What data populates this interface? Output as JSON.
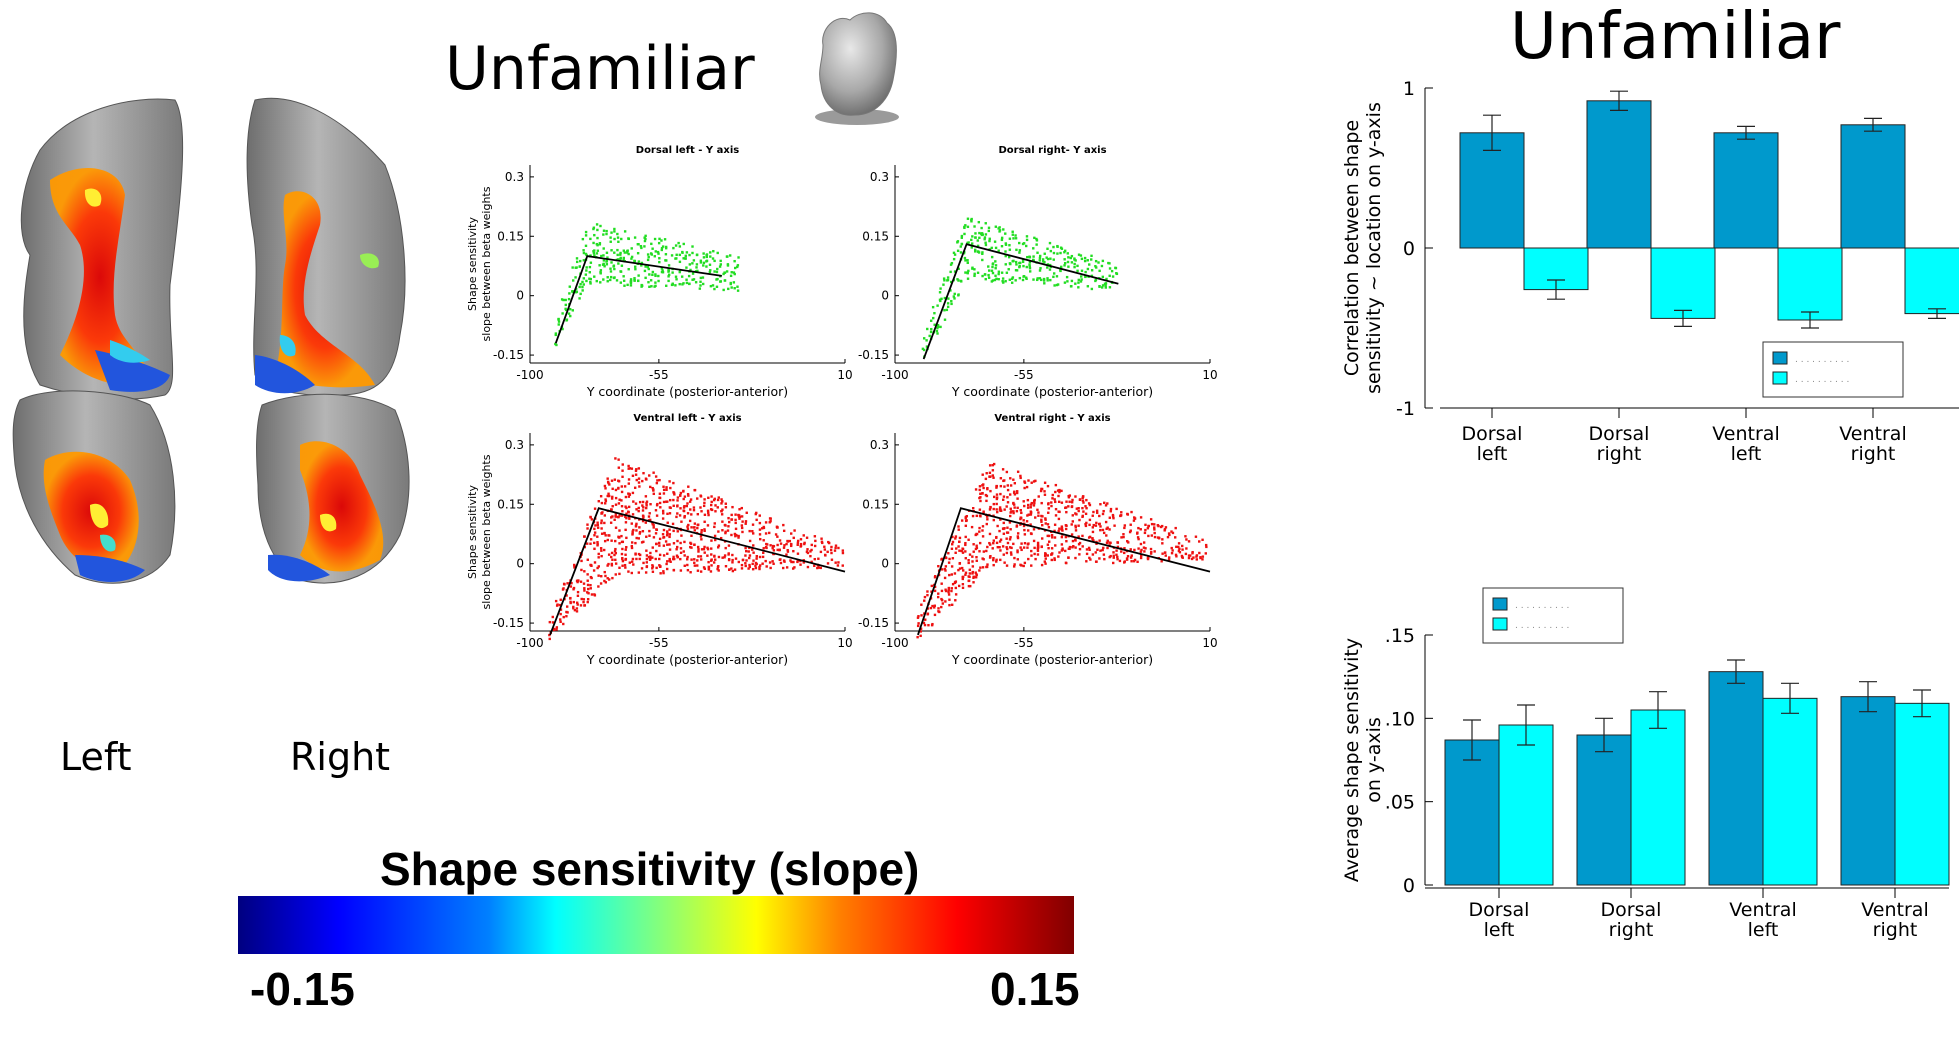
{
  "titles": {
    "middle": "Unfamiliar",
    "right": "Unfamiliar"
  },
  "brain": {
    "left_label": "Left",
    "right_label": "Right"
  },
  "colorbar": {
    "title": "Shape sensitivity (slope)",
    "min_label": "-0.15",
    "max_label": "0.15"
  },
  "colors": {
    "dark_bar": "#0099cc",
    "light_bar": "#00ffff",
    "dorsal_points": "#22dd22",
    "ventral_points": "#ee1111",
    "fit_line": "#000000"
  },
  "icon": "3d-object-icon",
  "chart_data": [
    {
      "type": "scatter",
      "id": "dorsal-left",
      "title": "Dorsal left - Y axis",
      "xlabel": "Y coordinate (posterior-anterior)",
      "ylabel": "Shape sensitivity slope between beta weights",
      "xlim": [
        -100,
        10
      ],
      "ylim": [
        -0.17,
        0.33
      ],
      "xticks": [
        {
          "v": -100,
          "label": "-100"
        },
        {
          "v": -55,
          "label": "-55"
        },
        {
          "v": 10,
          "label": "10"
        }
      ],
      "yticks": [
        {
          "v": -0.15,
          "label": "-0.15"
        },
        {
          "v": 0,
          "label": "0"
        },
        {
          "v": 0.15,
          "label": "0.15"
        },
        {
          "v": 0.3,
          "label": "0.3"
        }
      ],
      "color": "dorsal",
      "points_range": {
        "x_start": -91,
        "x_end": -27,
        "peak_x": -80,
        "start_low": -0.13,
        "start_high": -0.06,
        "peak_low": 0.03,
        "peak_high": 0.19,
        "end_low": 0.01,
        "end_high": 0.1
      },
      "fit_line": {
        "x": [
          -91,
          -80,
          -33
        ],
        "y": [
          -0.12,
          0.1,
          0.05
        ]
      }
    },
    {
      "type": "scatter",
      "id": "dorsal-right",
      "title": "Dorsal right- Y axis",
      "xlabel": "Y coordinate (posterior-anterior)",
      "ylabel": "",
      "xlim": [
        -100,
        10
      ],
      "ylim": [
        -0.17,
        0.33
      ],
      "xticks": [
        {
          "v": -100,
          "label": "-100"
        },
        {
          "v": -55,
          "label": "-55"
        },
        {
          "v": 10,
          "label": "10"
        }
      ],
      "yticks": [
        {
          "v": -0.15,
          "label": "-0.15"
        },
        {
          "v": 0,
          "label": "0"
        },
        {
          "v": 0.15,
          "label": "0.15"
        },
        {
          "v": 0.3,
          "label": "0.3"
        }
      ],
      "color": "dorsal",
      "points_range": {
        "x_start": -90,
        "x_end": -22,
        "peak_x": -75,
        "start_low": -0.16,
        "start_high": -0.1,
        "peak_low": 0.04,
        "peak_high": 0.2,
        "end_low": 0.01,
        "end_high": 0.08
      },
      "fit_line": {
        "x": [
          -90,
          -75,
          -22
        ],
        "y": [
          -0.16,
          0.13,
          0.03
        ]
      }
    },
    {
      "type": "scatter",
      "id": "ventral-left",
      "title": "Ventral left - Y axis",
      "xlabel": "Y coordinate (posterior-anterior)",
      "ylabel": "Shape sensitivity slope between beta weights",
      "xlim": [
        -100,
        10
      ],
      "ylim": [
        -0.17,
        0.33
      ],
      "xticks": [
        {
          "v": -100,
          "label": "-100"
        },
        {
          "v": -55,
          "label": "-55"
        },
        {
          "v": 10,
          "label": "10"
        }
      ],
      "yticks": [
        {
          "v": -0.15,
          "label": "-0.15"
        },
        {
          "v": 0,
          "label": "0"
        },
        {
          "v": 0.15,
          "label": "0.15"
        },
        {
          "v": 0.3,
          "label": "0.3"
        }
      ],
      "color": "ventral",
      "points_range": {
        "x_start": -93,
        "x_end": 10,
        "peak_x": -70,
        "start_low": -0.19,
        "start_high": -0.13,
        "peak_low": -0.03,
        "peak_high": 0.27,
        "end_low": -0.01,
        "end_high": 0.04
      },
      "fit_line": {
        "x": [
          -93,
          -76,
          10
        ],
        "y": [
          -0.18,
          0.14,
          -0.02
        ]
      }
    },
    {
      "type": "scatter",
      "id": "ventral-right",
      "title": "Ventral right - Y axis",
      "xlabel": "Y coordinate (posterior-anterior)",
      "ylabel": "",
      "xlim": [
        -100,
        10
      ],
      "ylim": [
        -0.17,
        0.33
      ],
      "xticks": [
        {
          "v": -100,
          "label": "-100"
        },
        {
          "v": -55,
          "label": "-55"
        },
        {
          "v": 10,
          "label": "10"
        }
      ],
      "yticks": [
        {
          "v": -0.15,
          "label": "-0.15"
        },
        {
          "v": 0,
          "label": "0"
        },
        {
          "v": 0.15,
          "label": "0.15"
        },
        {
          "v": 0.3,
          "label": "0.3"
        }
      ],
      "color": "ventral",
      "points_range": {
        "x_start": -92,
        "x_end": 10,
        "peak_x": -68,
        "start_low": -0.2,
        "start_high": -0.12,
        "peak_low": -0.01,
        "peak_high": 0.26,
        "end_low": 0.01,
        "end_high": 0.06
      },
      "fit_line": {
        "x": [
          -92,
          -77,
          10
        ],
        "y": [
          -0.18,
          0.14,
          -0.02
        ]
      }
    },
    {
      "type": "bar",
      "id": "correlation",
      "ylabel": "Correlation between shape sensitivity ~ location on y-axis",
      "categories": [
        "Dorsal left",
        "Dorsal right",
        "Ventral left",
        "Ventral right"
      ],
      "ylim": [
        -1,
        1
      ],
      "yticks": [
        {
          "v": -1,
          "label": "-1"
        },
        {
          "v": 0,
          "label": "0"
        },
        {
          "v": 1,
          "label": "1"
        }
      ],
      "series": [
        {
          "values": [
            0.72,
            0.92,
            0.72,
            0.77
          ],
          "errors": [
            0.11,
            0.06,
            0.04,
            0.04
          ],
          "color": "dark"
        },
        {
          "values": [
            -0.26,
            -0.44,
            -0.45,
            -0.41
          ],
          "errors": [
            0.06,
            0.05,
            0.05,
            0.03
          ],
          "color": "light"
        }
      ],
      "legend": {
        "position": "lower-right",
        "entry_text": ". . . . . . . . . ."
      }
    },
    {
      "type": "bar",
      "id": "average",
      "ylabel": "Average shape sensitivity on y-axis",
      "categories": [
        "Dorsal left",
        "Dorsal right",
        "Ventral left",
        "Ventral right"
      ],
      "ylim": [
        0,
        0.15
      ],
      "yticks": [
        {
          "v": 0,
          "label": "0"
        },
        {
          "v": 0.05,
          "label": ".05"
        },
        {
          "v": 0.1,
          "label": ".10"
        },
        {
          "v": 0.15,
          "label": ".15"
        }
      ],
      "series": [
        {
          "values": [
            0.087,
            0.09,
            0.128,
            0.113
          ],
          "errors": [
            0.012,
            0.01,
            0.007,
            0.009
          ],
          "color": "dark"
        },
        {
          "values": [
            0.096,
            0.105,
            0.112,
            0.109
          ],
          "errors": [
            0.012,
            0.011,
            0.009,
            0.008
          ],
          "color": "light"
        }
      ],
      "legend": {
        "position": "top-left",
        "entry_text": ". . . . . . . . . ."
      }
    }
  ]
}
